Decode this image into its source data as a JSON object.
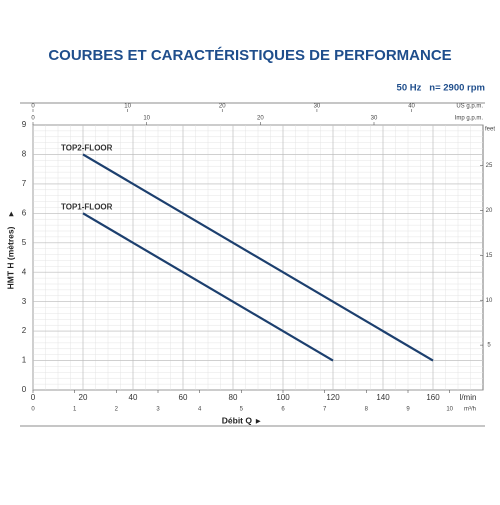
{
  "chart_data": {
    "type": "line",
    "title": "COURBES ET CARACTÉRISTIQUES DE PERFORMANCE",
    "subtitle": "50 Hz   n= 2900 rpm",
    "x_label": "Débit Q",
    "x_unit": "l/min",
    "y_label": "HMT H (mètres)",
    "xlim": [
      0,
      180
    ],
    "xticks": [
      0,
      20,
      40,
      60,
      80,
      100,
      120,
      140,
      160
    ],
    "ylim": [
      0,
      9
    ],
    "yticks": [
      0,
      1,
      2,
      3,
      4,
      5,
      6,
      7,
      8,
      9
    ],
    "grid": true,
    "x_m3h": {
      "unit": "m³/h",
      "lim": [
        0,
        10.8
      ],
      "ticks": [
        0,
        1,
        2,
        3,
        4,
        5,
        6,
        7,
        8,
        9,
        10
      ]
    },
    "x_us_gpm": {
      "unit": "US g.p.m.",
      "lim": [
        0,
        47.55
      ],
      "ticks": [
        0,
        10,
        20,
        30,
        40
      ]
    },
    "x_imp_gpm": {
      "unit": "Imp g.p.m.",
      "lim": [
        0,
        39.59
      ],
      "ticks": [
        0,
        10,
        20,
        30
      ]
    },
    "y_feet": {
      "unit": "feet",
      "lim": [
        0,
        29.53
      ],
      "ticks": [
        5,
        10,
        15,
        20,
        25
      ]
    },
    "series": [
      {
        "name": "TOP2-FLOOR",
        "color": "#1c3f6e",
        "x": [
          20,
          160
        ],
        "values": [
          8,
          1
        ]
      },
      {
        "name": "TOP1-FLOOR",
        "color": "#1c3f6e",
        "x": [
          20,
          120
        ],
        "values": [
          6,
          1
        ]
      }
    ]
  }
}
